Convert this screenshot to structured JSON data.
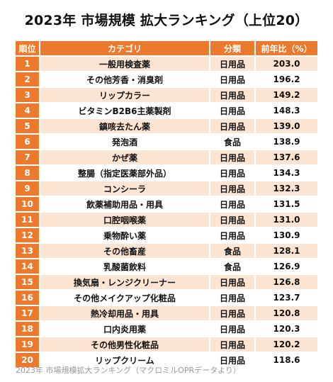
{
  "title": "2023年 市場規模 拡大ランキング（上位20）",
  "columns": {
    "rank": "順位",
    "category": "カテゴリ",
    "type": "分類",
    "ratio": "前年比（%）"
  },
  "rows": [
    {
      "rank": "1",
      "category": "一般用検査薬",
      "type": "日用品",
      "ratio": "203.0"
    },
    {
      "rank": "2",
      "category": "その他芳香・消臭剤",
      "type": "日用品",
      "ratio": "196.2"
    },
    {
      "rank": "3",
      "category": "リップカラー",
      "type": "日用品",
      "ratio": "149.2"
    },
    {
      "rank": "4",
      "category": "ビタミンB2B6主薬製剤",
      "type": "日用品",
      "ratio": "148.3"
    },
    {
      "rank": "5",
      "category": "鎮咳去たん薬",
      "type": "日用品",
      "ratio": "139.0"
    },
    {
      "rank": "6",
      "category": "発泡酒",
      "type": "食品",
      "ratio": "138.9"
    },
    {
      "rank": "7",
      "category": "かぜ薬",
      "type": "日用品",
      "ratio": "137.6"
    },
    {
      "rank": "8",
      "category": "整腸（指定医薬部外品）",
      "type": "日用品",
      "ratio": "134.3"
    },
    {
      "rank": "9",
      "category": "コンシーラ",
      "type": "日用品",
      "ratio": "132.3"
    },
    {
      "rank": "10",
      "category": "飲薬補助用品・用具",
      "type": "日用品",
      "ratio": "131.5"
    },
    {
      "rank": "11",
      "category": "口腔咽喉薬",
      "type": "日用品",
      "ratio": "131.0"
    },
    {
      "rank": "12",
      "category": "乗物酔い薬",
      "type": "日用品",
      "ratio": "130.9"
    },
    {
      "rank": "13",
      "category": "その他畜産",
      "type": "食品",
      "ratio": "128.1"
    },
    {
      "rank": "14",
      "category": "乳酸菌飲料",
      "type": "食品",
      "ratio": "126.9"
    },
    {
      "rank": "15",
      "category": "換気扇・レンジクリーナー",
      "type": "日用品",
      "ratio": "126.8"
    },
    {
      "rank": "16",
      "category": "その他メイクアップ化粧品",
      "type": "日用品",
      "ratio": "123.7"
    },
    {
      "rank": "17",
      "category": "熱冷却用品・用具",
      "type": "日用品",
      "ratio": "120.8"
    },
    {
      "rank": "18",
      "category": "口内炎用薬",
      "type": "日用品",
      "ratio": "120.3"
    },
    {
      "rank": "19",
      "category": "その他男性化粧品",
      "type": "日用品",
      "ratio": "120.2"
    },
    {
      "rank": "20",
      "category": "リップクリーム",
      "type": "日用品",
      "ratio": "118.6"
    }
  ],
  "caption": "2023年 市場規模拡大ランキング（マクロミルOPRデータより）",
  "colors": {
    "header": "#ec7a2e",
    "row_alt": "#fce4d3"
  }
}
